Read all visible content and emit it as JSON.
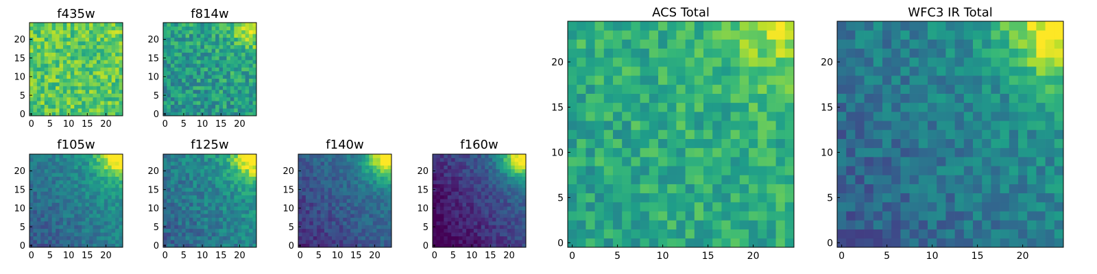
{
  "colormap": "viridis",
  "chart_data": [
    {
      "type": "heatmap",
      "title": "f435w",
      "grid_size": 25,
      "value_range": [
        0,
        1
      ],
      "xticks": [
        0,
        5,
        10,
        15,
        20
      ],
      "yticks": [
        0,
        5,
        10,
        15,
        20
      ],
      "pattern": {
        "base": 0.74,
        "gx": 0.0,
        "gy": 0.0,
        "corner": 0.05,
        "noise": 0.32,
        "seed": 11
      }
    },
    {
      "type": "heatmap",
      "title": "f814w",
      "grid_size": 25,
      "value_range": [
        0,
        1
      ],
      "xticks": [
        0,
        5,
        10,
        15,
        20
      ],
      "yticks": [
        0,
        5,
        10,
        15,
        20
      ],
      "pattern": {
        "base": 0.56,
        "gx": 0.05,
        "gy": 0.06,
        "corner": 0.35,
        "noise": 0.34,
        "seed": 23
      }
    },
    {
      "type": "heatmap",
      "title": "f105w",
      "grid_size": 25,
      "value_range": [
        0,
        1
      ],
      "xticks": [
        0,
        5,
        10,
        15,
        20
      ],
      "yticks": [
        0,
        5,
        10,
        15,
        20
      ],
      "pattern": {
        "base": 0.42,
        "gx": 0.18,
        "gy": 0.14,
        "corner": 0.55,
        "noise": 0.2,
        "seed": 37
      }
    },
    {
      "type": "heatmap",
      "title": "f125w",
      "grid_size": 25,
      "value_range": [
        0,
        1
      ],
      "xticks": [
        0,
        5,
        10,
        15,
        20
      ],
      "yticks": [
        0,
        5,
        10,
        15,
        20
      ],
      "pattern": {
        "base": 0.44,
        "gx": 0.16,
        "gy": 0.12,
        "corner": 0.55,
        "noise": 0.24,
        "seed": 41
      }
    },
    {
      "type": "heatmap",
      "title": "f140w",
      "grid_size": 25,
      "value_range": [
        0,
        1
      ],
      "xticks": [
        0,
        5,
        10,
        15,
        20
      ],
      "yticks": [
        0,
        5,
        10,
        15,
        20
      ],
      "pattern": {
        "base": 0.3,
        "gx": 0.2,
        "gy": 0.16,
        "corner": 0.65,
        "noise": 0.18,
        "seed": 53
      }
    },
    {
      "type": "heatmap",
      "title": "f160w",
      "grid_size": 25,
      "value_range": [
        0,
        1
      ],
      "xticks": [
        0,
        5,
        10,
        15,
        20
      ],
      "yticks": [
        0,
        5,
        10,
        15,
        20
      ],
      "pattern": {
        "base": 0.18,
        "gx": 0.26,
        "gy": 0.18,
        "corner": 0.7,
        "noise": 0.16,
        "seed": 67
      }
    },
    {
      "type": "heatmap",
      "title": "ACS Total",
      "grid_size": 25,
      "value_range": [
        0,
        1
      ],
      "xticks": [
        0,
        5,
        10,
        15,
        20
      ],
      "yticks": [
        0,
        5,
        10,
        15,
        20
      ],
      "pattern": {
        "base": 0.62,
        "gx": 0.04,
        "gy": 0.04,
        "corner": 0.25,
        "noise": 0.28,
        "seed": 79
      }
    },
    {
      "type": "heatmap",
      "title": "WFC3 IR Total",
      "grid_size": 25,
      "value_range": [
        0,
        1
      ],
      "xticks": [
        0,
        5,
        10,
        15,
        20
      ],
      "yticks": [
        0,
        5,
        10,
        15,
        20
      ],
      "pattern": {
        "base": 0.42,
        "gx": 0.16,
        "gy": 0.12,
        "corner": 0.5,
        "noise": 0.24,
        "seed": 97
      }
    }
  ]
}
